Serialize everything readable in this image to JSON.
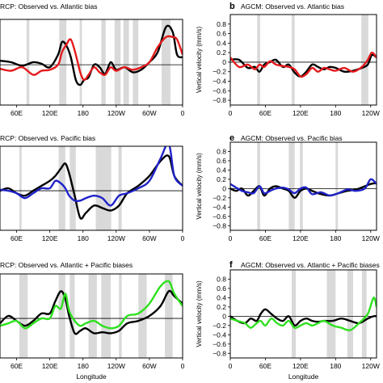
{
  "chart_data": [
    {
      "id": "panel-a",
      "type": "line",
      "letter": "",
      "title": "RCP: Observed vs. Atlantic bias",
      "xlabel": "",
      "ylabel": "",
      "xlim": [
        30,
        360
      ],
      "ylim": [
        -0.8,
        0.9
      ],
      "xticks": [
        {
          "v": 60,
          "l": "60E"
        },
        {
          "v": 120,
          "l": "120E"
        },
        {
          "v": 180,
          "l": "180"
        },
        {
          "v": 240,
          "l": "120W"
        },
        {
          "v": 300,
          "l": "60W"
        },
        {
          "v": 360,
          "l": "0"
        }
      ],
      "yticks": [],
      "shading": [
        [
          78,
          83
        ],
        [
          137,
          150
        ],
        [
          174,
          178
        ],
        [
          213,
          221
        ],
        [
          237,
          248
        ],
        [
          253,
          263
        ],
        [
          270,
          280
        ],
        [
          322,
          338
        ]
      ],
      "series": [
        {
          "color": "#000000",
          "x": [
            30,
            50,
            70,
            90,
            105,
            120,
            135,
            142,
            150,
            158,
            167,
            175,
            182,
            190,
            200,
            210,
            220,
            230,
            240,
            255,
            270,
            285,
            300,
            315,
            330,
            342,
            350,
            360
          ],
          "y": [
            0.08,
            0.05,
            -0.02,
            0.05,
            0.02,
            -0.05,
            0.2,
            0.45,
            0.38,
            0.15,
            -0.3,
            -0.4,
            -0.3,
            -0.25,
            0.0,
            -0.05,
            -0.18,
            0.05,
            -0.1,
            -0.05,
            -0.15,
            -0.1,
            0.05,
            0.25,
            0.75,
            0.65,
            0.2,
            0.15
          ]
        },
        {
          "color": "#e41a1c",
          "x": [
            30,
            50,
            70,
            90,
            105,
            120,
            135,
            142,
            150,
            158,
            167,
            175,
            182,
            190,
            200,
            210,
            220,
            230,
            240,
            255,
            270,
            285,
            300,
            315,
            330,
            342,
            350,
            360
          ],
          "y": [
            -0.08,
            -0.12,
            -0.05,
            -0.2,
            -0.12,
            -0.1,
            0.0,
            0.25,
            0.4,
            0.5,
            0.2,
            -0.15,
            -0.3,
            -0.2,
            -0.05,
            -0.15,
            -0.2,
            -0.05,
            -0.12,
            -0.05,
            -0.1,
            -0.05,
            0.05,
            0.35,
            0.55,
            0.55,
            0.5,
            0.2
          ]
        }
      ]
    },
    {
      "id": "panel-b",
      "type": "line",
      "letter": "b",
      "title": "AGCM: Observed vs. Atlantic bias",
      "xlabel": "",
      "ylabel": "Vertical velocity (mm/s)",
      "xlim": [
        0,
        250
      ],
      "ylim": [
        -0.9,
        1.0
      ],
      "xticks": [
        {
          "v": 0,
          "l": "0"
        },
        {
          "v": 60,
          "l": "60E"
        },
        {
          "v": 120,
          "l": "120E"
        },
        {
          "v": 180,
          "l": "180"
        },
        {
          "v": 240,
          "l": "120W"
        }
      ],
      "yticks": [
        {
          "v": 0.8,
          "l": "0.8"
        },
        {
          "v": 0.6,
          "l": "0.6"
        },
        {
          "v": 0.4,
          "l": "0.4"
        },
        {
          "v": 0.2,
          "l": "0.2"
        },
        {
          "v": 0,
          "l": "0"
        },
        {
          "v": -0.2,
          "l": "−0.2"
        },
        {
          "v": -0.4,
          "l": "−0.4"
        },
        {
          "v": -0.6,
          "l": "−0.6"
        },
        {
          "v": -0.8,
          "l": "−0.8"
        }
      ],
      "shading": [
        [
          46,
          51
        ],
        [
          105,
          110
        ],
        [
          224,
          236
        ]
      ],
      "series": [
        {
          "color": "#000000",
          "x": [
            0,
            15,
            30,
            42,
            50,
            58,
            68,
            78,
            90,
            100,
            110,
            120,
            130,
            140,
            150,
            160,
            170,
            180,
            195,
            210,
            225,
            235,
            242,
            250
          ],
          "y": [
            0.05,
            0.05,
            -0.12,
            -0.1,
            -0.2,
            -0.05,
            0.0,
            0.05,
            -0.1,
            -0.05,
            -0.22,
            -0.3,
            -0.2,
            -0.05,
            -0.1,
            -0.15,
            -0.1,
            -0.12,
            -0.2,
            -0.18,
            -0.12,
            -0.05,
            0.15,
            0.1
          ]
        },
        {
          "color": "#e41a1c",
          "x": [
            0,
            15,
            30,
            42,
            50,
            58,
            68,
            78,
            90,
            100,
            110,
            120,
            130,
            140,
            150,
            160,
            170,
            180,
            195,
            210,
            225,
            235,
            242,
            250
          ],
          "y": [
            0.1,
            -0.1,
            -0.05,
            -0.15,
            -0.05,
            -0.1,
            0.02,
            -0.05,
            -0.08,
            -0.1,
            -0.15,
            -0.3,
            -0.25,
            -0.12,
            -0.2,
            -0.12,
            -0.15,
            -0.18,
            -0.12,
            -0.2,
            -0.1,
            0.05,
            0.2,
            0.1
          ]
        }
      ]
    },
    {
      "id": "panel-d",
      "type": "line",
      "letter": "",
      "title": "RCP: Observed vs. Pacific bias",
      "xlabel": "",
      "ylabel": "",
      "xlim": [
        30,
        360
      ],
      "ylim": [
        -0.8,
        0.9
      ],
      "xticks": [
        {
          "v": 60,
          "l": "60E"
        },
        {
          "v": 120,
          "l": "120E"
        },
        {
          "v": 180,
          "l": "180"
        },
        {
          "v": 240,
          "l": "120W"
        },
        {
          "v": 300,
          "l": "60W"
        },
        {
          "v": 360,
          "l": "0"
        }
      ],
      "yticks": [],
      "shading": [
        [
          65,
          69
        ],
        [
          136,
          148
        ],
        [
          156,
          167
        ],
        [
          203,
          231
        ],
        [
          244,
          250
        ]
      ],
      "series": [
        {
          "color": "#000000",
          "x": [
            30,
            45,
            60,
            75,
            90,
            105,
            120,
            130,
            140,
            148,
            155,
            165,
            175,
            185,
            200,
            215,
            230,
            245,
            260,
            280,
            300,
            320,
            335,
            345,
            360
          ],
          "y": [
            0.0,
            0.05,
            -0.05,
            -0.1,
            0.0,
            0.1,
            0.2,
            0.3,
            0.45,
            0.55,
            0.35,
            -0.1,
            -0.55,
            -0.45,
            -0.3,
            -0.35,
            -0.4,
            -0.3,
            -0.05,
            0.1,
            0.3,
            0.6,
            0.7,
            0.3,
            0.1
          ]
        },
        {
          "color": "#1f22c8",
          "x": [
            30,
            45,
            60,
            75,
            90,
            105,
            120,
            130,
            140,
            148,
            155,
            165,
            175,
            185,
            200,
            215,
            230,
            245,
            260,
            280,
            300,
            320,
            335,
            345,
            360
          ],
          "y": [
            0.02,
            0.0,
            -0.05,
            -0.15,
            -0.05,
            0.05,
            0.05,
            0.2,
            0.15,
            0.05,
            -0.1,
            -0.2,
            -0.2,
            -0.15,
            -0.1,
            -0.15,
            -0.3,
            -0.1,
            -0.05,
            0.05,
            0.2,
            0.65,
            0.95,
            0.3,
            0.1
          ]
        }
      ]
    },
    {
      "id": "panel-e",
      "type": "line",
      "letter": "e",
      "title": "AGCM: Observed vs. Pacific bias",
      "xlabel": "",
      "ylabel": "Vertical velocity (mm/s)",
      "xlim": [
        0,
        250
      ],
      "ylim": [
        -0.9,
        1.0
      ],
      "xticks": [
        {
          "v": 0,
          "l": "0"
        },
        {
          "v": 60,
          "l": "60E"
        },
        {
          "v": 120,
          "l": "120E"
        },
        {
          "v": 180,
          "l": "180"
        },
        {
          "v": 240,
          "l": "120W"
        }
      ],
      "yticks": [
        {
          "v": 0.8,
          "l": "0.8"
        },
        {
          "v": 0.6,
          "l": "0.6"
        },
        {
          "v": 0.4,
          "l": "0.4"
        },
        {
          "v": 0.2,
          "l": "0.2"
        },
        {
          "v": 0,
          "l": "0"
        },
        {
          "v": -0.2,
          "l": "−0.2"
        },
        {
          "v": -0.4,
          "l": "−0.4"
        },
        {
          "v": -0.6,
          "l": "−0.6"
        },
        {
          "v": -0.8,
          "l": "−0.8"
        }
      ],
      "shading": [
        [
          46,
          51
        ],
        [
          100,
          110
        ],
        [
          119,
          124
        ],
        [
          180,
          184
        ]
      ],
      "series": [
        {
          "color": "#000000",
          "x": [
            0,
            10,
            20,
            30,
            40,
            50,
            58,
            68,
            78,
            90,
            100,
            110,
            120,
            130,
            140,
            155,
            170,
            185,
            200,
            215,
            230,
            240,
            250
          ],
          "y": [
            0.0,
            -0.05,
            0.0,
            -0.15,
            -0.05,
            0.05,
            -0.15,
            0.0,
            0.05,
            0.0,
            -0.05,
            -0.2,
            -0.05,
            0.0,
            -0.05,
            -0.12,
            -0.15,
            -0.1,
            -0.05,
            -0.02,
            0.05,
            0.1,
            0.12
          ]
        },
        {
          "color": "#1f22c8",
          "x": [
            0,
            10,
            20,
            30,
            40,
            50,
            58,
            68,
            78,
            90,
            100,
            110,
            120,
            130,
            140,
            155,
            170,
            185,
            200,
            215,
            230,
            240,
            250
          ],
          "y": [
            0.1,
            0.02,
            -0.05,
            -0.08,
            -0.1,
            0.05,
            -0.1,
            -0.05,
            0.0,
            0.02,
            -0.02,
            -0.1,
            0.0,
            0.02,
            -0.12,
            -0.08,
            -0.15,
            -0.1,
            -0.02,
            -0.05,
            0.0,
            0.2,
            0.1
          ]
        }
      ]
    },
    {
      "id": "panel-g",
      "type": "line",
      "letter": "",
      "title": "RCP: Observed vs. Atlantic + Pacific biases",
      "xlabel": "Longitude",
      "ylabel": "",
      "xlim": [
        30,
        360
      ],
      "ylim": [
        -0.8,
        0.9
      ],
      "xticks": [
        {
          "v": 60,
          "l": "60E"
        },
        {
          "v": 120,
          "l": "120E"
        },
        {
          "v": 180,
          "l": "180"
        },
        {
          "v": 240,
          "l": "120W"
        },
        {
          "v": 300,
          "l": "60W"
        },
        {
          "v": 360,
          "l": "0"
        }
      ],
      "yticks": [],
      "shading": [
        [
          65,
          80
        ],
        [
          136,
          148
        ],
        [
          156,
          165
        ],
        [
          190,
          205
        ],
        [
          213,
          230
        ],
        [
          245,
          250
        ],
        [
          280,
          295
        ],
        [
          328,
          342
        ]
      ],
      "series": [
        {
          "color": "#000000",
          "x": [
            30,
            45,
            60,
            75,
            90,
            105,
            120,
            130,
            140,
            148,
            155,
            165,
            175,
            185,
            200,
            215,
            230,
            245,
            260,
            280,
            300,
            320,
            335,
            345,
            360
          ],
          "y": [
            -0.1,
            0.05,
            -0.05,
            -0.15,
            -0.05,
            0.1,
            0.1,
            0.35,
            0.55,
            0.4,
            0.05,
            -0.3,
            -0.25,
            -0.2,
            -0.3,
            -0.28,
            -0.3,
            -0.25,
            -0.1,
            -0.05,
            0.05,
            0.25,
            0.55,
            0.45,
            0.3
          ]
        },
        {
          "color": "#2ee01e",
          "x": [
            30,
            45,
            60,
            75,
            90,
            105,
            120,
            130,
            140,
            148,
            155,
            165,
            175,
            185,
            200,
            215,
            230,
            245,
            260,
            280,
            300,
            320,
            335,
            345,
            360
          ],
          "y": [
            -0.15,
            -0.1,
            -0.05,
            -0.2,
            -0.1,
            0.0,
            0.0,
            0.25,
            0.2,
            0.5,
            0.15,
            -0.05,
            -0.15,
            -0.1,
            -0.05,
            -0.15,
            -0.2,
            -0.15,
            0.05,
            0.1,
            0.3,
            0.65,
            0.75,
            0.5,
            0.25
          ]
        }
      ]
    },
    {
      "id": "panel-f",
      "type": "line",
      "letter": "f",
      "title": "AGCM: Observed vs. Atlantic + Pacific biases",
      "xlabel": "Longitude",
      "ylabel": "Vertical velocity (mm/s)",
      "xlim": [
        0,
        250
      ],
      "ylim": [
        -0.9,
        1.0
      ],
      "xticks": [
        {
          "v": 0,
          "l": "0"
        },
        {
          "v": 60,
          "l": "60E"
        },
        {
          "v": 120,
          "l": "120E"
        },
        {
          "v": 180,
          "l": "180"
        },
        {
          "v": 240,
          "l": "120W"
        }
      ],
      "yticks": [
        {
          "v": 0.8,
          "l": "0.8"
        },
        {
          "v": 0.6,
          "l": "0.6"
        },
        {
          "v": 0.4,
          "l": "0.4"
        },
        {
          "v": 0.2,
          "l": "0.2"
        },
        {
          "v": 0,
          "l": "0"
        },
        {
          "v": -0.2,
          "l": "−0.2"
        },
        {
          "v": -0.4,
          "l": "−0.4"
        },
        {
          "v": -0.6,
          "l": "−0.6"
        },
        {
          "v": -0.8,
          "l": "−0.8"
        }
      ],
      "shading": [
        [
          105,
          112
        ],
        [
          165,
          180
        ],
        [
          200,
          210
        ],
        [
          225,
          233
        ]
      ],
      "series": [
        {
          "color": "#000000",
          "x": [
            0,
            12,
            25,
            35,
            45,
            52,
            60,
            70,
            80,
            90,
            100,
            110,
            120,
            130,
            140,
            150,
            160,
            175,
            190,
            205,
            220,
            235,
            245,
            250
          ],
          "y": [
            0.0,
            -0.1,
            -0.15,
            -0.05,
            -0.1,
            0.05,
            0.15,
            0.05,
            -0.05,
            -0.1,
            0.0,
            -0.2,
            -0.1,
            -0.05,
            -0.1,
            -0.12,
            -0.1,
            -0.1,
            -0.05,
            -0.1,
            -0.15,
            -0.05,
            0.0,
            0.0
          ]
        },
        {
          "color": "#2ee01e",
          "x": [
            0,
            12,
            25,
            35,
            45,
            52,
            60,
            70,
            80,
            90,
            100,
            110,
            120,
            130,
            140,
            150,
            160,
            175,
            190,
            205,
            220,
            235,
            245,
            250
          ],
          "y": [
            -0.05,
            -0.1,
            -0.15,
            -0.25,
            -0.15,
            -0.1,
            -0.2,
            -0.05,
            -0.15,
            -0.2,
            -0.1,
            -0.25,
            -0.2,
            -0.15,
            -0.2,
            -0.15,
            -0.1,
            -0.2,
            -0.25,
            -0.3,
            -0.15,
            0.05,
            0.4,
            0.2
          ]
        }
      ]
    }
  ]
}
